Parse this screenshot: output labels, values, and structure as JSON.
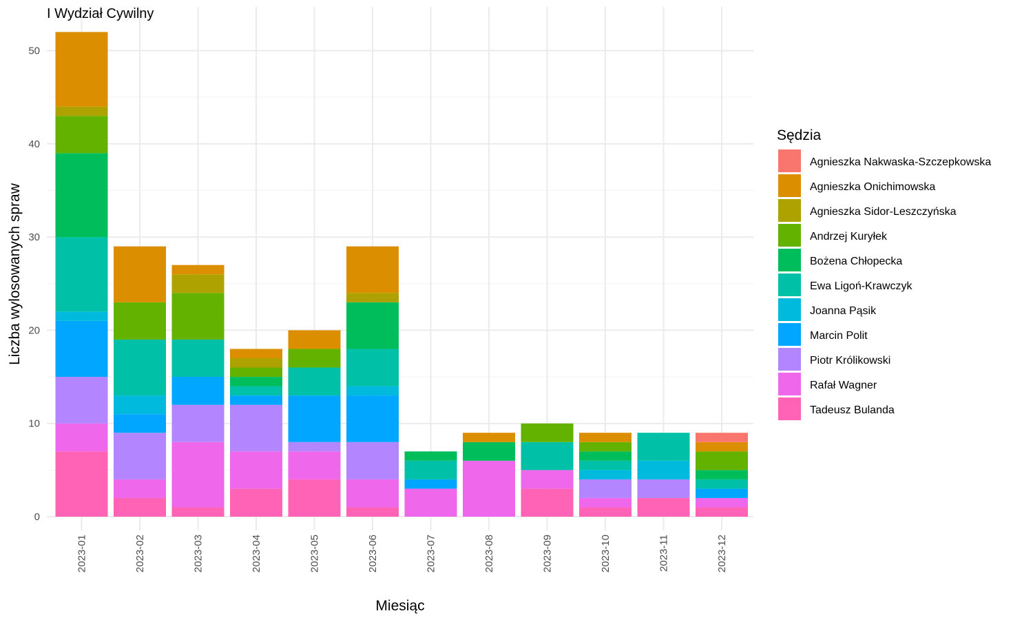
{
  "chart_data": {
    "type": "bar",
    "stacked": true,
    "title": "I Wydział Cywilny",
    "xlabel": "Miesiąc",
    "ylabel": "Liczba wylosowanych spraw",
    "ylim": [
      0,
      52
    ],
    "yticks": [
      0,
      10,
      20,
      30,
      40,
      50
    ],
    "grid": true,
    "legend_title": "Sędzia",
    "legend_position": "right",
    "categories": [
      "2023-01",
      "2023-02",
      "2023-03",
      "2023-04",
      "2023-05",
      "2023-06",
      "2023-07",
      "2023-08",
      "2023-09",
      "2023-10",
      "2023-11",
      "2023-12"
    ],
    "series": [
      {
        "name": "Agnieszka Nakwaska-Szczepkowska",
        "color": "#F8766D",
        "values": [
          0,
          0,
          0,
          0,
          0,
          0,
          0,
          0,
          0,
          0,
          0,
          1
        ]
      },
      {
        "name": "Agnieszka Onichimowska",
        "color": "#DB8E00",
        "values": [
          8,
          6,
          1,
          1,
          2,
          5,
          0,
          1,
          0,
          1,
          0,
          1
        ]
      },
      {
        "name": "Agnieszka Sidor-Leszczyńska",
        "color": "#AEA200",
        "values": [
          1,
          0,
          2,
          1,
          0,
          1,
          0,
          0,
          0,
          0,
          0,
          0
        ]
      },
      {
        "name": "Andrzej Kuryłek",
        "color": "#64B200",
        "values": [
          4,
          4,
          5,
          1,
          2,
          0,
          0,
          0,
          2,
          1,
          0,
          2
        ]
      },
      {
        "name": "Bożena Chłopecka",
        "color": "#00BD5C",
        "values": [
          9,
          0,
          0,
          1,
          0,
          5,
          1,
          2,
          0,
          1,
          0,
          1
        ]
      },
      {
        "name": "Ewa Ligoń-Krawczyk",
        "color": "#00C1A7",
        "values": [
          8,
          6,
          4,
          1,
          3,
          4,
          2,
          0,
          3,
          1,
          3,
          1
        ]
      },
      {
        "name": "Joanna Pąsik",
        "color": "#00BADE",
        "values": [
          1,
          2,
          0,
          0,
          0,
          1,
          0,
          0,
          0,
          1,
          2,
          0
        ]
      },
      {
        "name": "Marcin Polit",
        "color": "#00A6FF",
        "values": [
          6,
          2,
          3,
          1,
          5,
          5,
          1,
          0,
          0,
          0,
          0,
          1
        ]
      },
      {
        "name": "Piotr Królikowski",
        "color": "#B385FF",
        "values": [
          5,
          5,
          4,
          5,
          1,
          4,
          0,
          0,
          0,
          2,
          2,
          0
        ]
      },
      {
        "name": "Rafał Wagner",
        "color": "#EF67EB",
        "values": [
          3,
          2,
          7,
          4,
          3,
          3,
          3,
          6,
          2,
          1,
          0,
          1
        ]
      },
      {
        "name": "Tadeusz Bulanda",
        "color": "#FF63B6",
        "values": [
          7,
          2,
          1,
          3,
          4,
          1,
          0,
          0,
          3,
          1,
          2,
          1
        ]
      }
    ]
  }
}
